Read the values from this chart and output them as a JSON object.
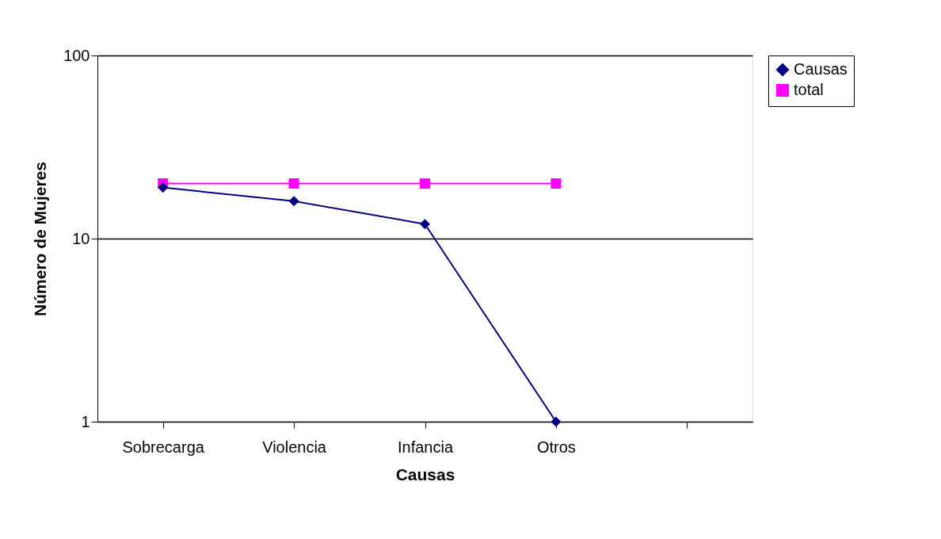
{
  "chart_data": {
    "type": "line",
    "xlabel": "Causas",
    "ylabel": "Número de Mujeres",
    "categories": [
      "Sobrecarga",
      "Violencia",
      "Infancia",
      "Otros",
      null
    ],
    "series": [
      {
        "name": "Causas",
        "color": "#000080",
        "marker": "diamond",
        "values": [
          19,
          16,
          12,
          1,
          null
        ]
      },
      {
        "name": "total",
        "color": "#ff00ff",
        "marker": "square",
        "values": [
          20,
          20,
          20,
          20,
          null
        ]
      }
    ],
    "log": "y",
    "ylim": [
      1,
      100
    ],
    "yticks": [
      1,
      10,
      100
    ],
    "grid": "y",
    "legend": "right",
    "line_style": "solid"
  }
}
